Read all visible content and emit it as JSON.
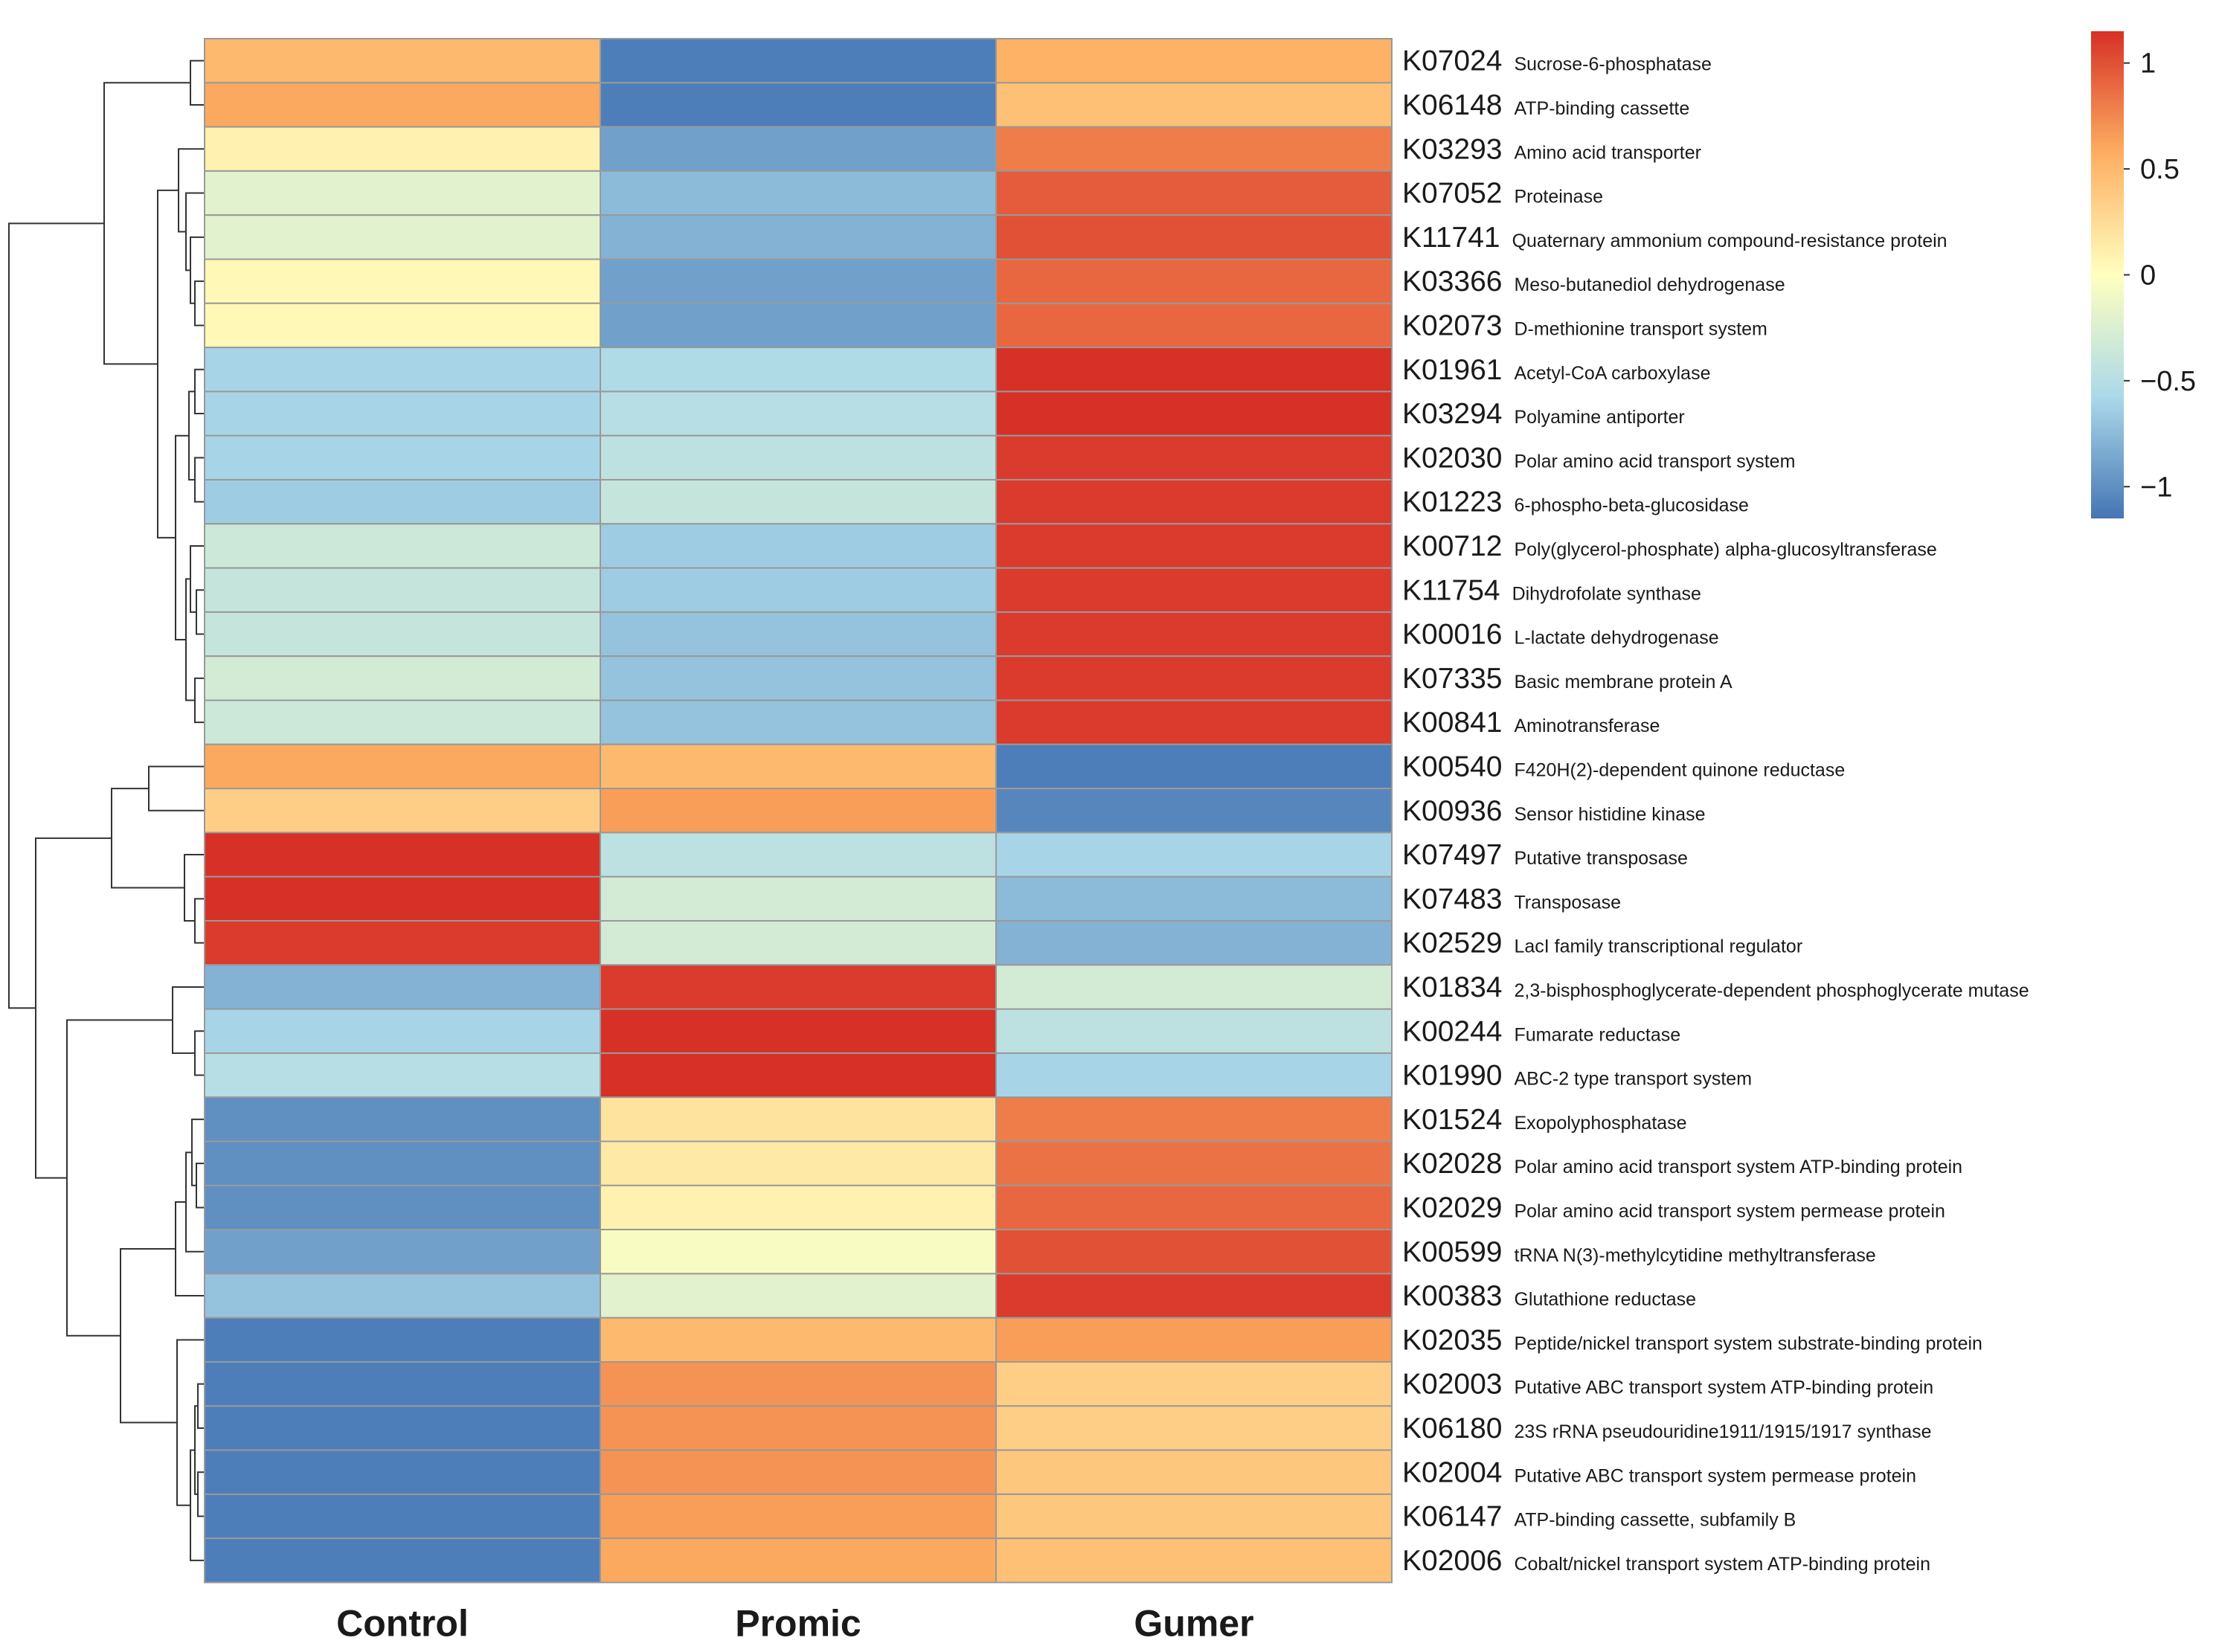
{
  "chart_data": {
    "type": "heatmap",
    "title": "",
    "columns": [
      "Control",
      "Promic",
      "Gumer"
    ],
    "rows": [
      {
        "code": "K07024",
        "desc": "Sucrose-6-phosphatase",
        "values": [
          0.5,
          -1.1,
          0.55
        ]
      },
      {
        "code": "K06148",
        "desc": "ATP-binding cassette",
        "values": [
          0.6,
          -1.1,
          0.45
        ]
      },
      {
        "code": "K03293",
        "desc": "Amino acid transporter",
        "values": [
          0.1,
          -0.9,
          0.8
        ]
      },
      {
        "code": "K07052",
        "desc": "Proteinase",
        "values": [
          -0.2,
          -0.75,
          0.95
        ]
      },
      {
        "code": "K11741",
        "desc": "Quaternary ammonium compound-resistance protein",
        "values": [
          -0.2,
          -0.8,
          1.0
        ]
      },
      {
        "code": "K03366",
        "desc": "Meso-butanediol dehydrogenase",
        "values": [
          0.05,
          -0.9,
          0.9
        ]
      },
      {
        "code": "K02073",
        "desc": "D-methionine transport system",
        "values": [
          0.05,
          -0.9,
          0.9
        ]
      },
      {
        "code": "K01961",
        "desc": "Acetyl-CoA carboxylase",
        "values": [
          -0.6,
          -0.55,
          1.15
        ]
      },
      {
        "code": "K03294",
        "desc": "Polyamine antiporter",
        "values": [
          -0.6,
          -0.5,
          1.15
        ]
      },
      {
        "code": "K02030",
        "desc": "Polar amino acid transport system",
        "values": [
          -0.6,
          -0.45,
          1.1
        ]
      },
      {
        "code": "K01223",
        "desc": "6-phospho-beta-glucosidase",
        "values": [
          -0.65,
          -0.4,
          1.1
        ]
      },
      {
        "code": "K00712",
        "desc": "Poly(glycerol-phosphate) alpha-glucosyltransferase",
        "values": [
          -0.35,
          -0.65,
          1.1
        ]
      },
      {
        "code": "K11754",
        "desc": "Dihydrofolate synthase",
        "values": [
          -0.4,
          -0.65,
          1.1
        ]
      },
      {
        "code": "K00016",
        "desc": "L-lactate dehydrogenase",
        "values": [
          -0.4,
          -0.7,
          1.1
        ]
      },
      {
        "code": "K07335",
        "desc": "Basic membrane protein A",
        "values": [
          -0.3,
          -0.7,
          1.1
        ]
      },
      {
        "code": "K00841",
        "desc": "Aminotransferase",
        "values": [
          -0.35,
          -0.7,
          1.1
        ]
      },
      {
        "code": "K00540",
        "desc": "F420H(2)-dependent quinone reductase",
        "values": [
          0.6,
          0.5,
          -1.1
        ]
      },
      {
        "code": "K00936",
        "desc": "Sensor histidine kinase",
        "values": [
          0.35,
          0.65,
          -1.05
        ]
      },
      {
        "code": "K07497",
        "desc": "Putative transposase",
        "values": [
          1.15,
          -0.45,
          -0.6
        ]
      },
      {
        "code": "K07483",
        "desc": "Transposase",
        "values": [
          1.15,
          -0.3,
          -0.75
        ]
      },
      {
        "code": "K02529",
        "desc": "LacI family transcriptional regulator",
        "values": [
          1.1,
          -0.3,
          -0.8
        ]
      },
      {
        "code": "K01834",
        "desc": "2,3-bisphosphoglycerate-dependent phosphoglycerate mutase",
        "values": [
          -0.8,
          1.1,
          -0.3
        ]
      },
      {
        "code": "K00244",
        "desc": "Fumarate reductase",
        "values": [
          -0.6,
          1.15,
          -0.45
        ]
      },
      {
        "code": "K01990",
        "desc": "ABC-2 type transport system",
        "values": [
          -0.5,
          1.15,
          -0.6
        ]
      },
      {
        "code": "K01524",
        "desc": "Exopolyphosphatase",
        "values": [
          -1.0,
          0.2,
          0.8
        ]
      },
      {
        "code": "K02028",
        "desc": "Polar amino acid transport system ATP-binding protein",
        "values": [
          -1.0,
          0.15,
          0.85
        ]
      },
      {
        "code": "K02029",
        "desc": "Polar amino acid transport system permease protein",
        "values": [
          -1.0,
          0.1,
          0.9
        ]
      },
      {
        "code": "K00599",
        "desc": "tRNA N(3)-methylcytidine methyltransferase",
        "values": [
          -0.9,
          -0.05,
          1.0
        ]
      },
      {
        "code": "K00383",
        "desc": "Glutathione reductase",
        "values": [
          -0.7,
          -0.2,
          1.1
        ]
      },
      {
        "code": "K02035",
        "desc": "Peptide/nickel transport system substrate-binding protein",
        "values": [
          -1.1,
          0.5,
          0.65
        ]
      },
      {
        "code": "K02003",
        "desc": "Putative ABC transport system ATP-binding protein",
        "values": [
          -1.1,
          0.7,
          0.35
        ]
      },
      {
        "code": "K06180",
        "desc": "23S rRNA pseudouridine1911/1915/1917 synthase",
        "values": [
          -1.1,
          0.7,
          0.35
        ]
      },
      {
        "code": "K02004",
        "desc": "Putative ABC transport system permease protein",
        "values": [
          -1.1,
          0.7,
          0.4
        ]
      },
      {
        "code": "K06147",
        "desc": "ATP-binding cassette, subfamily B",
        "values": [
          -1.1,
          0.65,
          0.4
        ]
      },
      {
        "code": "K02006",
        "desc": "Cobalt/nickel transport system ATP-binding protein",
        "values": [
          -1.1,
          0.6,
          0.45
        ]
      }
    ],
    "legend": {
      "ticks": [
        "1",
        "0.5",
        "0",
        "−0.5",
        "−1"
      ],
      "tick_values": [
        1,
        0.5,
        0,
        -0.5,
        -1
      ],
      "range": [
        -1.15,
        1.15
      ]
    },
    "colors": {
      "high": "#d73027",
      "upper_mid": "#fdae61",
      "mid": "#ffffbf",
      "lower_mid": "#abd9e9",
      "low": "#4575b4",
      "cell_border": "#999999",
      "dendrogram": "#333333"
    }
  }
}
